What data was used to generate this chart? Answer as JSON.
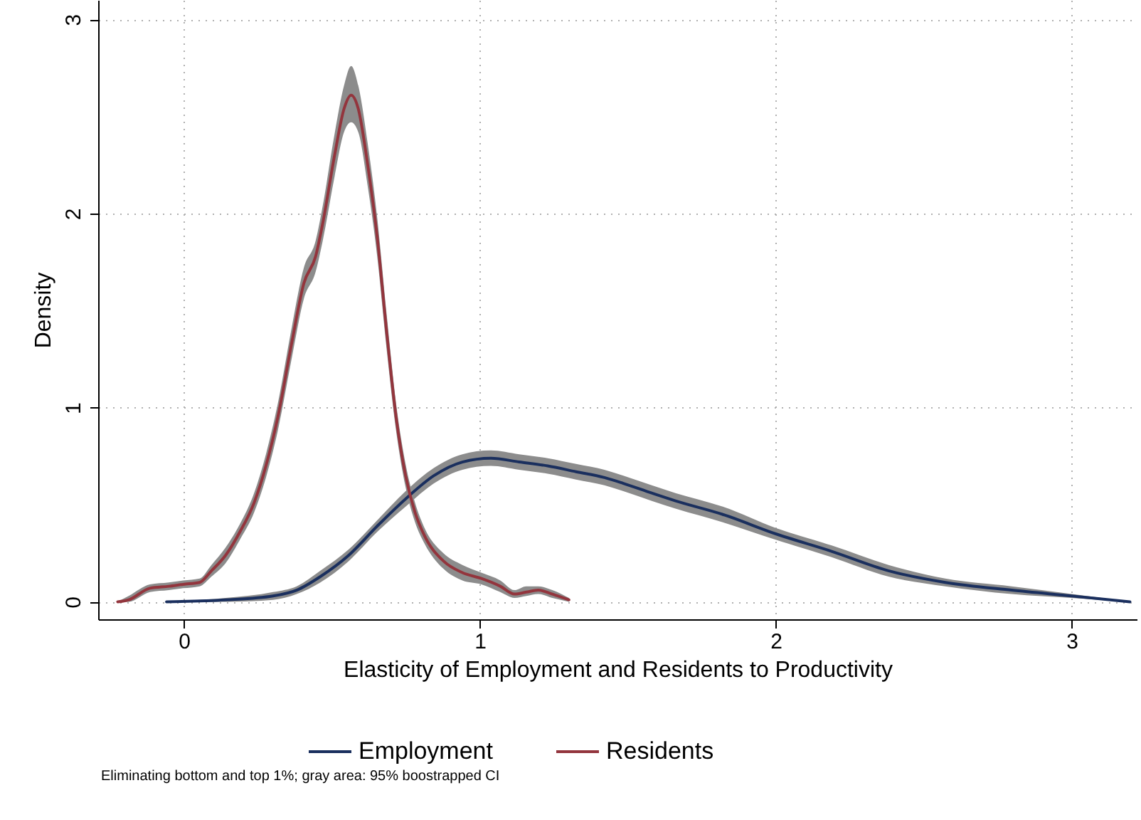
{
  "chart_data": {
    "type": "line",
    "xlabel": "Elasticity of Employment and Residents to Productivity",
    "ylabel": "Density",
    "annotations": [
      "Eliminating bottom and top 1%; gray area: 95% boostrapped CI"
    ],
    "xlim": [
      -0.29,
      3.22
    ],
    "xticks": [
      0,
      1,
      2,
      3
    ],
    "ylim": [
      -0.09,
      3.1
    ],
    "yticks": [
      0,
      1,
      2,
      3
    ],
    "grid": true,
    "legend": "bottom",
    "line_style": "solid",
    "series": [
      {
        "name": "Employment",
        "color": "#1a2f5e",
        "x": [
          -0.059,
          0.141,
          0.301,
          0.381,
          0.461,
          0.557,
          0.653,
          0.749,
          0.845,
          0.941,
          1.037,
          1.133,
          1.229,
          1.325,
          1.421,
          1.485,
          1.581,
          1.661,
          1.821,
          2.0,
          2.189,
          2.381,
          2.573,
          2.797,
          3.0,
          3.197
        ],
        "values": [
          0,
          0.01,
          0.03,
          0.06,
          0.13,
          0.24,
          0.39,
          0.53,
          0.65,
          0.72,
          0.74,
          0.72,
          0.7,
          0.67,
          0.64,
          0.61,
          0.56,
          0.52,
          0.45,
          0.35,
          0.26,
          0.16,
          0.1,
          0.06,
          0.03,
          0
        ],
        "lower": [
          0,
          0,
          0.01,
          0.04,
          0.1,
          0.21,
          0.36,
          0.49,
          0.61,
          0.68,
          0.7,
          0.68,
          0.66,
          0.63,
          0.6,
          0.57,
          0.52,
          0.48,
          0.41,
          0.32,
          0.23,
          0.13,
          0.08,
          0.04,
          0.02,
          0
        ],
        "upper": [
          0,
          0.02,
          0.05,
          0.08,
          0.16,
          0.27,
          0.42,
          0.57,
          0.69,
          0.76,
          0.78,
          0.76,
          0.74,
          0.71,
          0.68,
          0.65,
          0.6,
          0.56,
          0.49,
          0.38,
          0.29,
          0.19,
          0.12,
          0.08,
          0.04,
          0
        ]
      },
      {
        "name": "Residents",
        "color": "#93353d",
        "x": [
          -0.224,
          -0.187,
          -0.115,
          -0.051,
          -0.003,
          0.053,
          0.093,
          0.141,
          0.189,
          0.237,
          0.277,
          0.317,
          0.365,
          0.405,
          0.445,
          0.469,
          0.509,
          0.541,
          0.565,
          0.589,
          0.621,
          0.653,
          0.685,
          0.717,
          0.749,
          0.781,
          0.813,
          0.877,
          0.941,
          1.005,
          1.069,
          1.117,
          1.157,
          1.197,
          1.245,
          1.301
        ],
        "values": [
          0,
          0.01,
          0.07,
          0.08,
          0.09,
          0.1,
          0.16,
          0.24,
          0.36,
          0.51,
          0.7,
          0.95,
          1.34,
          1.64,
          1.78,
          1.95,
          2.3,
          2.54,
          2.61,
          2.54,
          2.25,
          1.88,
          1.39,
          0.95,
          0.65,
          0.46,
          0.34,
          0.21,
          0.15,
          0.12,
          0.08,
          0.04,
          0.05,
          0.06,
          0.04,
          0.01
        ],
        "lower": [
          0,
          0,
          0.05,
          0.06,
          0.07,
          0.08,
          0.13,
          0.2,
          0.32,
          0.46,
          0.64,
          0.88,
          1.26,
          1.56,
          1.7,
          1.86,
          2.19,
          2.42,
          2.47,
          2.42,
          2.14,
          1.78,
          1.3,
          0.88,
          0.59,
          0.41,
          0.3,
          0.17,
          0.11,
          0.09,
          0.05,
          0.02,
          0.03,
          0.04,
          0.02,
          0
        ],
        "upper": [
          0,
          0.03,
          0.09,
          0.1,
          0.11,
          0.12,
          0.19,
          0.28,
          0.4,
          0.56,
          0.76,
          1.02,
          1.42,
          1.72,
          1.86,
          2.04,
          2.41,
          2.66,
          2.76,
          2.66,
          2.36,
          1.98,
          1.48,
          1.02,
          0.71,
          0.51,
          0.38,
          0.25,
          0.19,
          0.15,
          0.11,
          0.06,
          0.08,
          0.08,
          0.06,
          0.02
        ]
      }
    ]
  }
}
